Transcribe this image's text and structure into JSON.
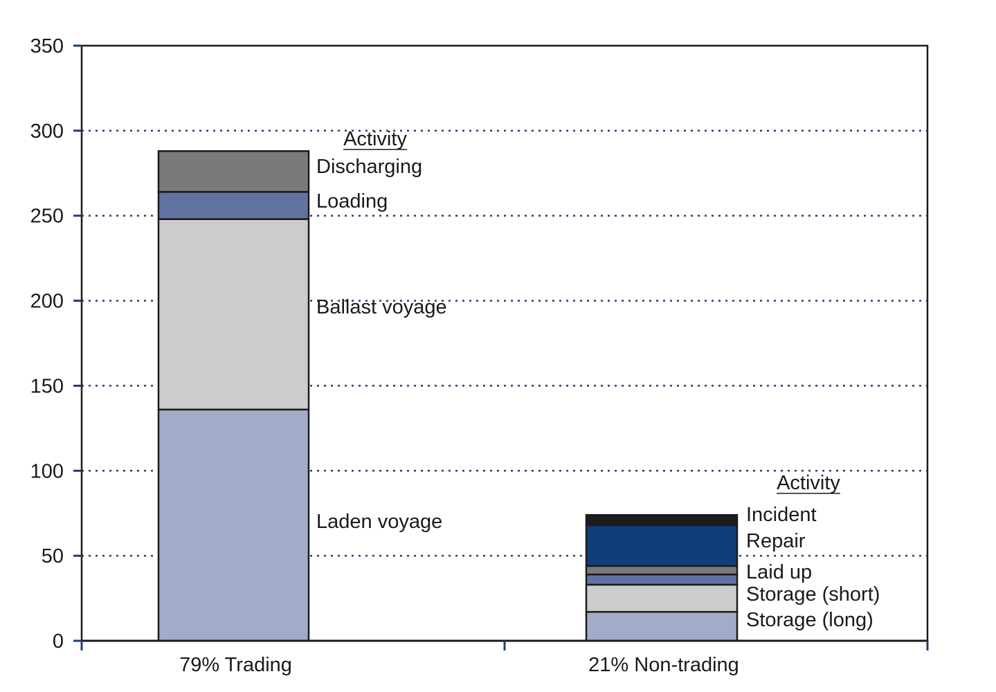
{
  "chart_data": {
    "type": "bar",
    "stacked": true,
    "categories": [
      "79% Trading",
      "21% Non-trading"
    ],
    "ylim": [
      0,
      350
    ],
    "yticks": [
      0,
      50,
      100,
      150,
      200,
      250,
      300,
      350
    ],
    "grid": "horizontal dotted",
    "bars": [
      {
        "category": "79% Trading",
        "legend_title": "Activity",
        "segments": [
          {
            "label": "Laden voyage",
            "value": 136,
            "color": "#a3abc8"
          },
          {
            "label": "Ballast voyage",
            "value": 112,
            "color": "#cccccc"
          },
          {
            "label": "Loading",
            "value": 16,
            "color": "#6273a3"
          },
          {
            "label": "Discharging",
            "value": 24,
            "color": "#7a7a7a"
          }
        ]
      },
      {
        "category": "21% Non-trading",
        "legend_title": "Activity",
        "segments": [
          {
            "label": "Storage (long)",
            "value": 17,
            "color": "#a3abc8"
          },
          {
            "label": "Storage (short)",
            "value": 16,
            "color": "#cccccc"
          },
          {
            "label": "",
            "value": 6,
            "color": "#6273a3"
          },
          {
            "label": "Laid up",
            "value": 5,
            "color": "#7a7a7a"
          },
          {
            "label": "Repair",
            "value": 24,
            "color": "#0e3f78"
          },
          {
            "label": "Incident",
            "value": 6,
            "color": "#1c1c1c"
          }
        ]
      }
    ]
  }
}
